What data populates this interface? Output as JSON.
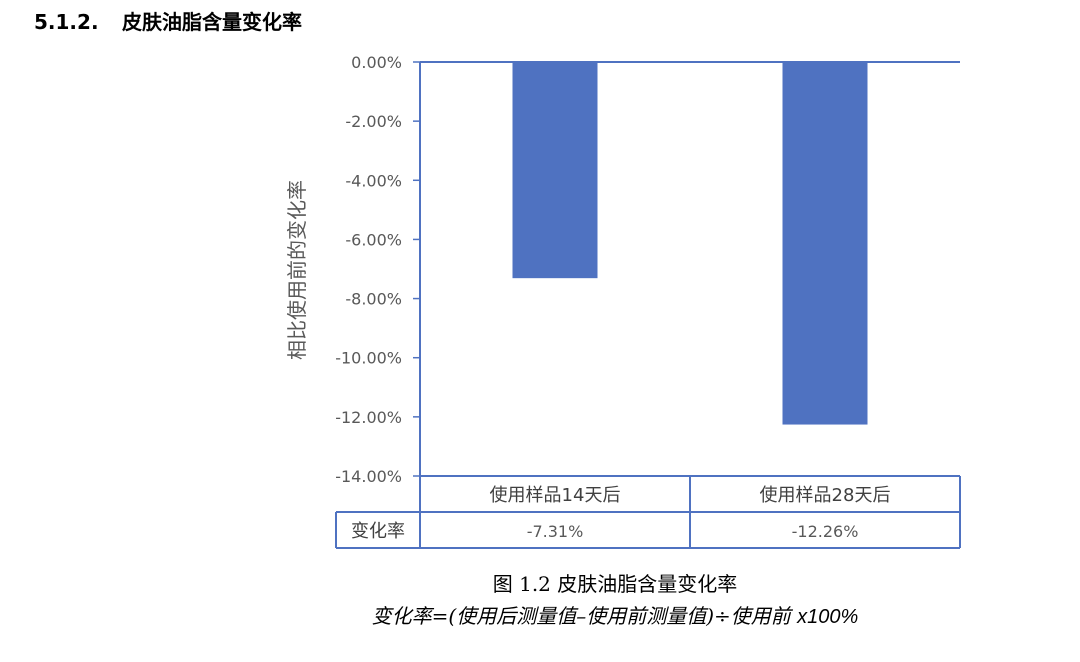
{
  "section": {
    "number": "5.1.2.",
    "title": "皮肤油脂含量变化率"
  },
  "chart_data": {
    "type": "bar",
    "categories": [
      "使用样品14天后",
      "使用样品28天后"
    ],
    "values": [
      -7.31,
      -12.26
    ],
    "value_labels": [
      "-7.31%",
      "-12.26%"
    ],
    "row_label": "变化率",
    "ylabel": "相比使用前的变化率",
    "yticks": [
      "0.00%",
      "-2.00%",
      "-4.00%",
      "-6.00%",
      "-8.00%",
      "-10.00%",
      "-12.00%",
      "-14.00%"
    ],
    "ylim": [
      -14,
      0
    ],
    "bar_color": "#4F72C1",
    "table_border_color": "#4F72C1",
    "axis_color": "#4F72C1",
    "legend": "none"
  },
  "caption": "图 1.2 皮肤油脂含量变化率",
  "formula": {
    "text": "变化率=(使用后测量值–使用前测量值)÷使用前 ",
    "suffix": "x100%"
  }
}
